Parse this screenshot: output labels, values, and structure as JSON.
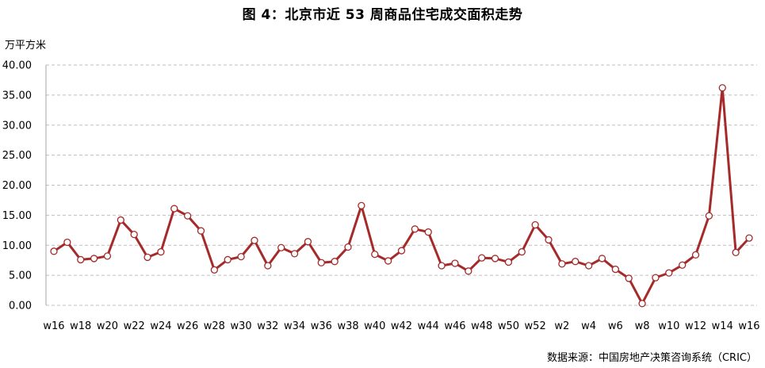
{
  "title": "图 4：北京市近 53 周商品住宅成交面积走势",
  "unit_label": "万平方米",
  "source": "数据来源：中国房地产决策咨询系统（CRIC）",
  "chart_data": {
    "type": "line",
    "title": "图 4：北京市近 53 周商品住宅成交面积走势",
    "ylabel": "万平方米",
    "xlabel": "",
    "ylim": [
      0,
      40
    ],
    "y_ticks": [
      "0.00",
      "5.00",
      "10.00",
      "15.00",
      "20.00",
      "25.00",
      "30.00",
      "35.00",
      "40.00"
    ],
    "x_tick_labels": [
      "w16",
      "w18",
      "w20",
      "w22",
      "w24",
      "w26",
      "w28",
      "w30",
      "w32",
      "w34",
      "w36",
      "w38",
      "w40",
      "w42",
      "w44",
      "w46",
      "w48",
      "w50",
      "w52",
      "w2",
      "w4",
      "w6",
      "w8",
      "w10",
      "w12",
      "w14",
      "w16"
    ],
    "grid": true,
    "legend": "none",
    "line_color": "#A52A2A",
    "categories": [
      "w16",
      "w17",
      "w18",
      "w19",
      "w20",
      "w21",
      "w22",
      "w23",
      "w24",
      "w25",
      "w26",
      "w27",
      "w28",
      "w29",
      "w30",
      "w31",
      "w32",
      "w33",
      "w34",
      "w35",
      "w36",
      "w37",
      "w38",
      "w39",
      "w40",
      "w41",
      "w42",
      "w43",
      "w44",
      "w45",
      "w46",
      "w47",
      "w48",
      "w49",
      "w50",
      "w51",
      "w52",
      "w1",
      "w2",
      "w3",
      "w4",
      "w5",
      "w6",
      "w7",
      "w8",
      "w9",
      "w10",
      "w11",
      "w12",
      "w13",
      "w14",
      "w15",
      "w16"
    ],
    "values": [
      9.0,
      10.5,
      7.6,
      7.8,
      8.2,
      14.2,
      11.8,
      8.0,
      8.9,
      16.1,
      14.9,
      12.4,
      5.9,
      7.6,
      8.1,
      10.8,
      6.6,
      9.6,
      8.6,
      10.6,
      7.1,
      7.3,
      9.7,
      16.6,
      8.5,
      7.4,
      9.1,
      12.7,
      12.2,
      6.6,
      7.0,
      5.7,
      7.9,
      7.8,
      7.2,
      8.9,
      13.4,
      10.9,
      6.9,
      7.3,
      6.6,
      7.8,
      6.0,
      4.5,
      0.3,
      4.6,
      5.4,
      6.7,
      8.4,
      14.9,
      36.2,
      8.8,
      11.2
    ]
  }
}
